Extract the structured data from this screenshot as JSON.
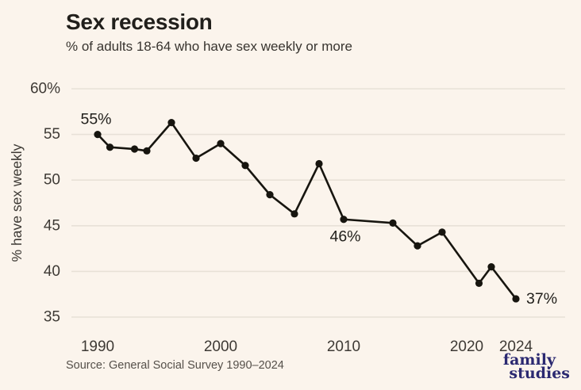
{
  "header": {
    "title": "Sex recession",
    "subtitle": "% of adults 18-64 who have sex weekly or more"
  },
  "chart_data": {
    "type": "line",
    "title": "Sex recession",
    "subtitle": "% of adults 18-64 who have sex weekly or more",
    "xlabel": "",
    "ylabel": "% have sex weekly",
    "x": [
      1990,
      1991,
      1993,
      1994,
      1996,
      1998,
      2000,
      2002,
      2004,
      2006,
      2008,
      2010,
      2014,
      2016,
      2018,
      2021,
      2022,
      2024
    ],
    "values": [
      55,
      53.6,
      53.4,
      53.2,
      56.3,
      52.4,
      54,
      51.6,
      48.4,
      46.3,
      51.8,
      45.7,
      45.3,
      42.8,
      44.3,
      38.7,
      40.5,
      37
    ],
    "x_range": [
      1988,
      2028
    ],
    "y_range": [
      35,
      60
    ],
    "grid": true,
    "legend": "none",
    "y_ticks": [
      {
        "value": 60,
        "label": "60%"
      },
      {
        "value": 55,
        "label": "55"
      },
      {
        "value": 50,
        "label": "50"
      },
      {
        "value": 45,
        "label": "45"
      },
      {
        "value": 40,
        "label": "40"
      },
      {
        "value": 35,
        "label": "35"
      }
    ],
    "x_ticks": [
      {
        "value": 1990,
        "label": "1990"
      },
      {
        "value": 2000,
        "label": "2000"
      },
      {
        "value": 2010,
        "label": "2010"
      },
      {
        "value": 2020,
        "label": "2020"
      },
      {
        "value": 2024,
        "label": "2024"
      }
    ],
    "annotations": [
      {
        "x": 1990,
        "y": 55,
        "text": "55%",
        "placement": "above"
      },
      {
        "x": 2010,
        "y": 45.7,
        "text": "46%",
        "placement": "below"
      },
      {
        "x": 2024,
        "y": 37,
        "text": "37%",
        "placement": "right"
      }
    ],
    "line_color": "#17150f",
    "point_color": "#17150f"
  },
  "footer": {
    "source": "Source: General Social Survey 1990–2024",
    "logo": {
      "line1": "family",
      "line2": "studies"
    }
  },
  "colors": {
    "background": "#fbf4ec",
    "grid": "#e8e1d7",
    "tick_text": "#3e3a35",
    "annotation_text": "#211f1b",
    "logo": "#2b2971"
  }
}
